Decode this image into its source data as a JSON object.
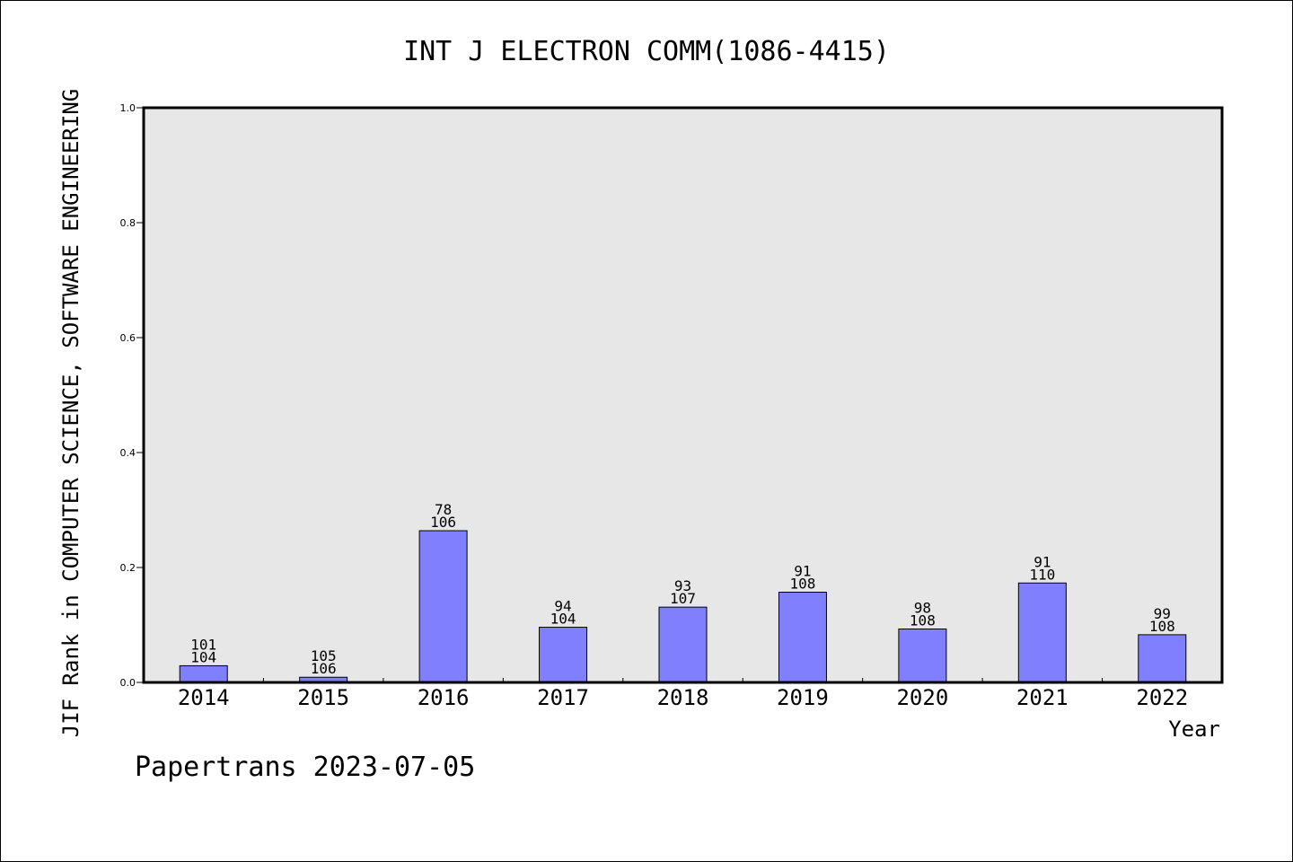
{
  "chart_data": {
    "type": "bar",
    "title": "INT J ELECTRON COMM(1086-4415)",
    "xlabel": "Year",
    "ylabel": "JIF Rank in COMPUTER SCIENCE, SOFTWARE ENGINEERING",
    "ylim": [
      0,
      1.0
    ],
    "yticks": [
      "0.0",
      "0.2",
      "0.4",
      "0.6",
      "0.8",
      "1.0"
    ],
    "categories": [
      "2014",
      "2015",
      "2016",
      "2017",
      "2018",
      "2019",
      "2020",
      "2021",
      "2022"
    ],
    "values": [
      0.029,
      0.009,
      0.264,
      0.096,
      0.131,
      0.157,
      0.093,
      0.173,
      0.083
    ],
    "ranks": [
      "101",
      "105",
      "78",
      "94",
      "93",
      "91",
      "98",
      "91",
      "99"
    ],
    "totals": [
      "104",
      "106",
      "106",
      "104",
      "107",
      "108",
      "108",
      "110",
      "108"
    ],
    "grid": false,
    "colors": {
      "bar": "#8080ff",
      "plot_bg": "#e7e7e7"
    }
  },
  "footer": "Papertrans 2023-07-05"
}
